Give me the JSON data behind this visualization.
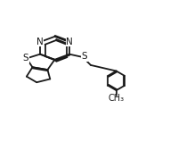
{
  "bg_color": "#ffffff",
  "line_color": "#1a1a1a",
  "lw": 1.3,
  "fs": 7.5,
  "xlim": [
    0.0,
    2.3
  ],
  "ylim": [
    0.05,
    1.1
  ]
}
